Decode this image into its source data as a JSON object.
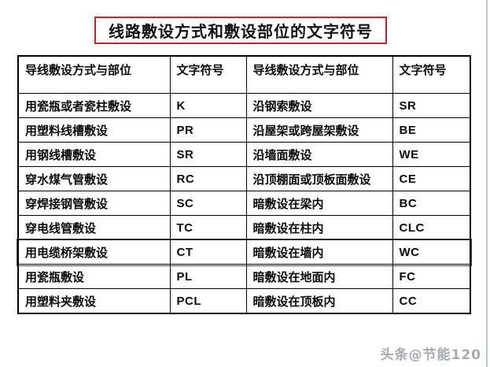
{
  "page": {
    "title": "线路敷设方式和敷设部位的文字符号",
    "watermark": "头条@节能120"
  },
  "colors": {
    "title_border": "#c12525",
    "table_border": "#000000",
    "watermark_gray": "#a6abb1",
    "edge_line": "#b9c6ce"
  },
  "table": {
    "headers": [
      "导线敷设方式与部位",
      "文字符号",
      "导线敷设方式与部位",
      "文字符号"
    ],
    "rows": [
      {
        "method_left": "用瓷瓶或者瓷柱敷设",
        "symbol_left": "K",
        "method_right": "沿钢索敷设",
        "symbol_right": "SR",
        "highlighted": false
      },
      {
        "method_left": "用塑料线槽敷设",
        "symbol_left": "PR",
        "method_right": "沿屋架或跨屋架敷设",
        "symbol_right": "BE",
        "highlighted": false
      },
      {
        "method_left": "用钢线槽敷设",
        "symbol_left": "SR",
        "method_right": "沿墙面敷设",
        "symbol_right": "WE",
        "highlighted": false
      },
      {
        "method_left": "穿水煤气管敷设",
        "symbol_left": "RC",
        "method_right": "沿顶棚面或顶板面敷设",
        "symbol_right": "CE",
        "highlighted": false
      },
      {
        "method_left": "穿焊接钢管敷设",
        "symbol_left": "SC",
        "method_right": "暗敷设在梁内",
        "symbol_right": "BC",
        "highlighted": false
      },
      {
        "method_left": "穿电线管敷设",
        "symbol_left": "TC",
        "method_right": "暗敷设在柱内",
        "symbol_right": "CLC",
        "highlighted": false
      },
      {
        "method_left": "用电缆桥架敷设",
        "symbol_left": "CT",
        "method_right": "暗敷设在墙内",
        "symbol_right": "WC",
        "highlighted": true
      },
      {
        "method_left": "用瓷瓶敷设",
        "symbol_left": "PL",
        "method_right": "暗敷设在地面内",
        "symbol_right": "FC",
        "highlighted": false
      },
      {
        "method_left": "用塑料夹敷设",
        "symbol_left": "PCL",
        "method_right": "暗敷设在顶板内",
        "symbol_right": "CC",
        "highlighted": false
      }
    ]
  }
}
